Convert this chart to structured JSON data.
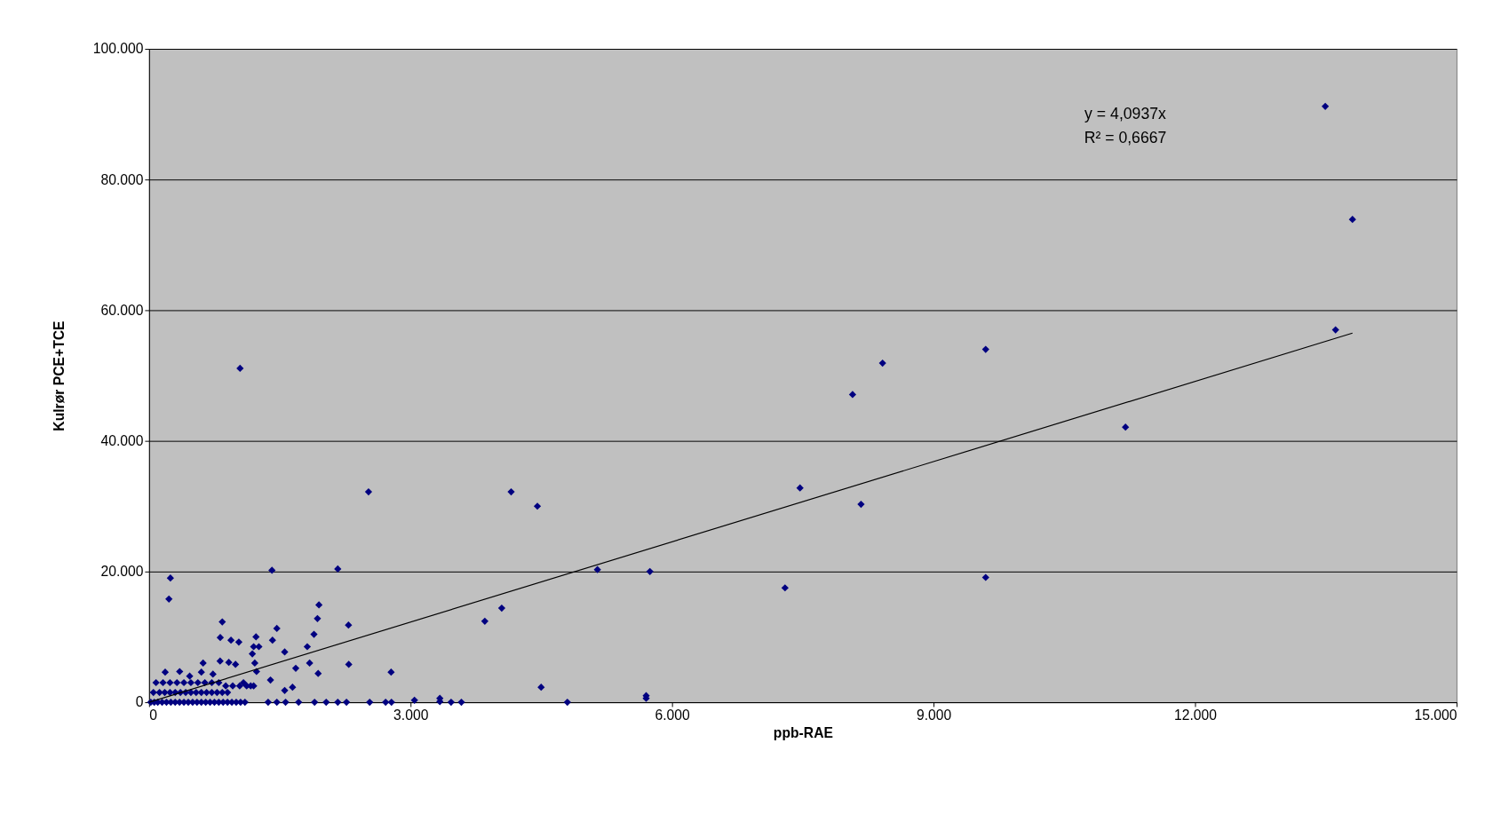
{
  "chart_data": {
    "type": "scatter",
    "xlabel": "ppb-RAE",
    "ylabel": "Kulrør PCE+TCE",
    "xlim": [
      0,
      15000
    ],
    "xticks": [
      0,
      {
        "value": 3000,
        "label": "3.000"
      },
      {
        "value": 6000,
        "label": "6.000"
      },
      {
        "value": 9000,
        "label": "9.000"
      },
      {
        "value": 12000,
        "label": "12.000"
      },
      {
        "value": 15000,
        "label": "15.000"
      }
    ],
    "ylim": [
      0,
      100000
    ],
    "yticks": [
      0,
      {
        "value": 20000,
        "label": "20.000"
      },
      {
        "value": 40000,
        "label": "40.000"
      },
      {
        "value": 60000,
        "label": "60.000"
      },
      {
        "value": 80000,
        "label": "80.000"
      },
      {
        "value": 100000,
        "label": "100.000"
      }
    ],
    "grid": "y",
    "marker": "diamond",
    "annotations": [
      "y = 4,0937x",
      "R² = 0,6667"
    ],
    "series": [
      {
        "color": "#000080",
        "x": [
          1044,
          2518,
          4154,
          4455,
          5144,
          5746,
          3852,
          4046,
          4498,
          4799,
          5703,
          5703,
          3045,
          3336,
          3336,
          3465,
          3583,
          7296,
          7468,
          8071,
          8168,
          8415,
          9598,
          9598,
          11202,
          13494,
          13612,
          13806,
          245,
          228,
          1410,
          2165,
          1949,
          1932,
          840,
          2288,
          1466,
          1892,
          817,
          940,
          1030,
          1227,
          1416,
          1200,
          1260,
          1185,
          1556,
          1815,
          1842,
          2291,
          2777,
          1683,
          1940,
          1213,
          992,
          620,
          815,
          915,
          1393,
          1556,
          1646,
          185,
          351,
          466,
          600,
          733,
          1083,
          1166,
          1233,
          1366,
          1466,
          1566,
          1716,
          1899,
          2032,
          2165,
          2265,
          2531,
          2714,
          2781,
          20,
          60,
          100,
          150,
          200,
          250,
          300,
          350,
          400,
          450,
          500,
          550,
          600,
          650,
          700,
          750,
          800,
          850,
          900,
          950,
          1000,
          1050,
          1100,
          50,
          120,
          180,
          240,
          300,
          360,
          420,
          480,
          540,
          600,
          660,
          720,
          780,
          840,
          900,
          80,
          160,
          240,
          320,
          400,
          480,
          560,
          640,
          720,
          800,
          880,
          960,
          1040,
          1120,
          1200
        ],
        "values": [
          51100,
          32200,
          32200,
          30000,
          20300,
          20000,
          12400,
          14400,
          2300,
          0,
          1000,
          600,
          300,
          600,
          100,
          0,
          0,
          17500,
          32800,
          47100,
          30300,
          51900,
          54000,
          19100,
          42100,
          91200,
          57000,
          73900,
          19000,
          15800,
          20200,
          20400,
          14900,
          12800,
          12300,
          11800,
          11300,
          10400,
          9900,
          9500,
          9200,
          10000,
          9500,
          8500,
          8500,
          7400,
          7700,
          8500,
          6000,
          5800,
          4600,
          5200,
          4400,
          6000,
          5800,
          6000,
          6300,
          6100,
          3400,
          1800,
          2300,
          4600,
          4700,
          4000,
          4600,
          4300,
          3000,
          2500,
          4700,
          0,
          0,
          0,
          0,
          0,
          0,
          0,
          0,
          0,
          0,
          0,
          0,
          0,
          0,
          0,
          0,
          0,
          0,
          0,
          0,
          0,
          0,
          0,
          0,
          0,
          0,
          0,
          0,
          0,
          0,
          0,
          0,
          0,
          0,
          1500,
          1500,
          1500,
          1500,
          1500,
          1500,
          1500,
          1500,
          1500,
          1500,
          1500,
          1500,
          1500,
          1500,
          1500,
          3000,
          3000,
          3000,
          3000,
          3000,
          3000,
          3000,
          3000,
          3000,
          3000,
          2500,
          2500,
          2500,
          2500,
          2500
        ]
      },
      {
        "type": "line",
        "color": "#000000",
        "marker": "none",
        "x": [
          0,
          13806
        ],
        "values": [
          0,
          56500
        ]
      }
    ]
  }
}
